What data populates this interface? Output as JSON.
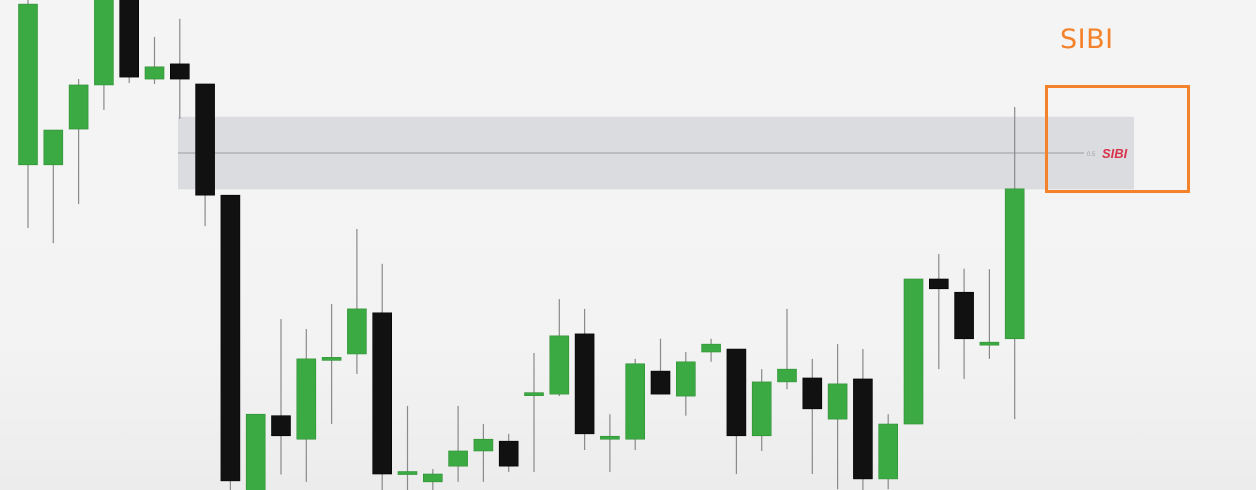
{
  "chart_data": {
    "type": "candlestick",
    "title": "",
    "xlabel": "",
    "ylabel": "",
    "ylim": [
      0,
      100
    ],
    "bullish_color": "#3caa42",
    "bearish_color": "#111111",
    "zone": {
      "label": "SIBI",
      "level_label": "0.5",
      "top": 78,
      "bottom": 63.2,
      "mid": 70.6,
      "fill": "#d6d7da",
      "label_color": "#d8334a"
    },
    "candles": [
      {
        "o": 68.2,
        "h": 108.0,
        "l": 55.3,
        "c": 101.0
      },
      {
        "o": 68.2,
        "h": 75.3,
        "l": 52.2,
        "c": 75.3
      },
      {
        "o": 75.5,
        "h": 85.7,
        "l": 60.2,
        "c": 84.5
      },
      {
        "o": 84.5,
        "h": 102.0,
        "l": 79.4,
        "c": 102.0
      },
      {
        "o": 102.0,
        "h": 104.0,
        "l": 84.9,
        "c": 86.1
      },
      {
        "o": 85.7,
        "h": 94.3,
        "l": 84.7,
        "c": 88.2
      },
      {
        "o": 88.8,
        "h": 98.0,
        "l": 77.6,
        "c": 85.7
      },
      {
        "o": 84.7,
        "h": 84.7,
        "l": 55.7,
        "c": 62.0
      },
      {
        "o": 62.0,
        "h": 62.0,
        "l": -10.0,
        "c": 3.7
      },
      {
        "o": -2.0,
        "h": 17.3,
        "l": -7.0,
        "c": 17.3
      },
      {
        "o": 17.0,
        "h": 36.7,
        "l": 5.0,
        "c": 12.9
      },
      {
        "o": 12.2,
        "h": 34.7,
        "l": 3.5,
        "c": 28.6
      },
      {
        "o": 28.6,
        "h": 39.8,
        "l": 15.3,
        "c": 28.6
      },
      {
        "o": 29.6,
        "h": 55.1,
        "l": 25.5,
        "c": 38.8
      },
      {
        "o": 38.0,
        "h": 48.0,
        "l": -10.0,
        "c": 5.1
      },
      {
        "o": 5.3,
        "h": 19.0,
        "l": -5.0,
        "c": 5.3
      },
      {
        "o": 3.5,
        "h": 6.1,
        "l": -3.0,
        "c": 5.1
      },
      {
        "o": 6.7,
        "h": 19.0,
        "l": 3.5,
        "c": 9.8
      },
      {
        "o": 9.8,
        "h": 15.3,
        "l": 3.5,
        "c": 12.2
      },
      {
        "o": 11.8,
        "h": 13.3,
        "l": 5.5,
        "c": 6.7
      },
      {
        "o": 21.4,
        "h": 29.8,
        "l": 5.5,
        "c": 21.4
      },
      {
        "o": 21.4,
        "h": 40.8,
        "l": 21.0,
        "c": 33.3
      },
      {
        "o": 33.7,
        "h": 38.8,
        "l": 10.0,
        "c": 13.3
      },
      {
        "o": 12.5,
        "h": 17.3,
        "l": 5.5,
        "c": 12.5
      },
      {
        "o": 12.2,
        "h": 28.6,
        "l": 10.0,
        "c": 27.6
      },
      {
        "o": 26.1,
        "h": 32.7,
        "l": 21.4,
        "c": 21.4
      },
      {
        "o": 21.0,
        "h": 30.0,
        "l": 17.0,
        "c": 28.0
      },
      {
        "o": 30.0,
        "h": 32.7,
        "l": 28.0,
        "c": 31.6
      },
      {
        "o": 30.6,
        "h": 30.6,
        "l": 5.1,
        "c": 12.9
      },
      {
        "o": 12.9,
        "h": 26.5,
        "l": 9.8,
        "c": 23.9
      },
      {
        "o": 23.9,
        "h": 38.8,
        "l": 22.4,
        "c": 26.5
      },
      {
        "o": 24.7,
        "h": 28.6,
        "l": 5.1,
        "c": 18.4
      },
      {
        "o": 16.3,
        "h": 31.6,
        "l": 2.0,
        "c": 23.5
      },
      {
        "o": 24.5,
        "h": 30.6,
        "l": -5.0,
        "c": 4.1
      },
      {
        "o": 4.1,
        "h": 17.3,
        "l": 2.0,
        "c": 15.3
      },
      {
        "o": 15.3,
        "h": 44.9,
        "l": 15.3,
        "c": 44.9
      },
      {
        "o": 44.9,
        "h": 50.0,
        "l": 26.5,
        "c": 42.9
      },
      {
        "o": 42.2,
        "h": 47.0,
        "l": 24.5,
        "c": 32.7
      },
      {
        "o": 31.4,
        "h": 46.9,
        "l": 28.6,
        "c": 32.0
      },
      {
        "o": 32.7,
        "h": 80.0,
        "l": 16.3,
        "c": 63.3
      }
    ]
  },
  "callout": {
    "label": "SIBI",
    "color": "#f4822a"
  }
}
